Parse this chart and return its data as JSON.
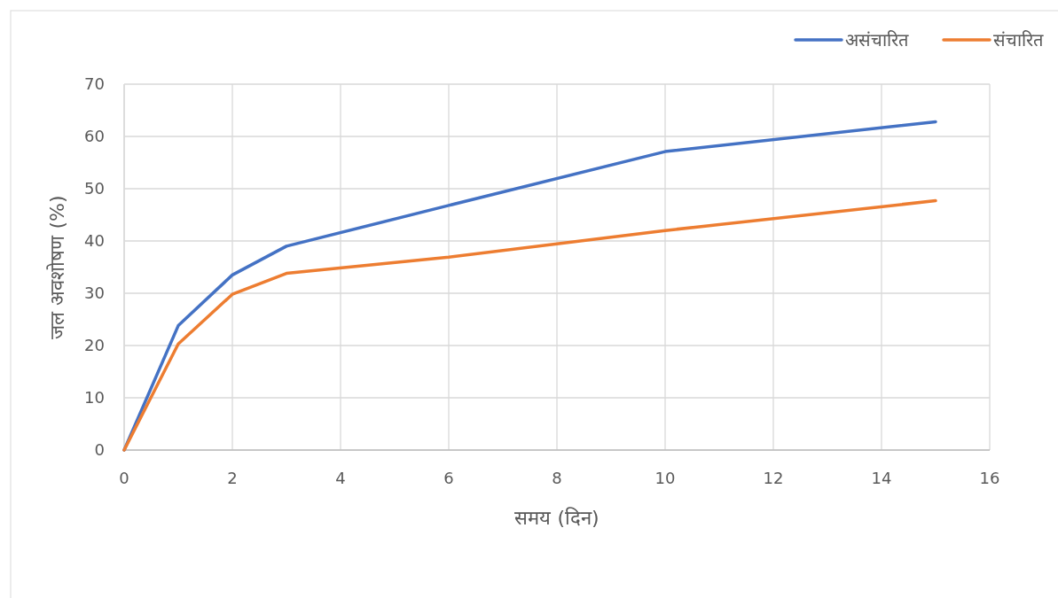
{
  "chart_data": {
    "type": "line",
    "xlabel": "समय (दिन)",
    "ylabel": "जल अवशोषण (%)",
    "x": [
      0,
      1,
      2,
      3,
      6,
      10,
      15
    ],
    "series": [
      {
        "name": "असंचारित",
        "color": "#4472c4",
        "values": [
          0,
          23.8,
          33.5,
          39.0,
          46.8,
          57.1,
          62.8
        ]
      },
      {
        "name": "संचारित",
        "color": "#ed7d31",
        "values": [
          0,
          20.3,
          29.8,
          33.8,
          36.9,
          42.0,
          47.7
        ]
      }
    ],
    "xlim": [
      0,
      16
    ],
    "xticks": [
      0,
      2,
      4,
      6,
      8,
      10,
      12,
      14,
      16
    ],
    "ylim": [
      0,
      70
    ],
    "yticks": [
      0,
      10,
      20,
      30,
      40,
      50,
      60,
      70
    ],
    "grid": true,
    "legend": "top right",
    "marker": "none",
    "line_style": "solid"
  }
}
